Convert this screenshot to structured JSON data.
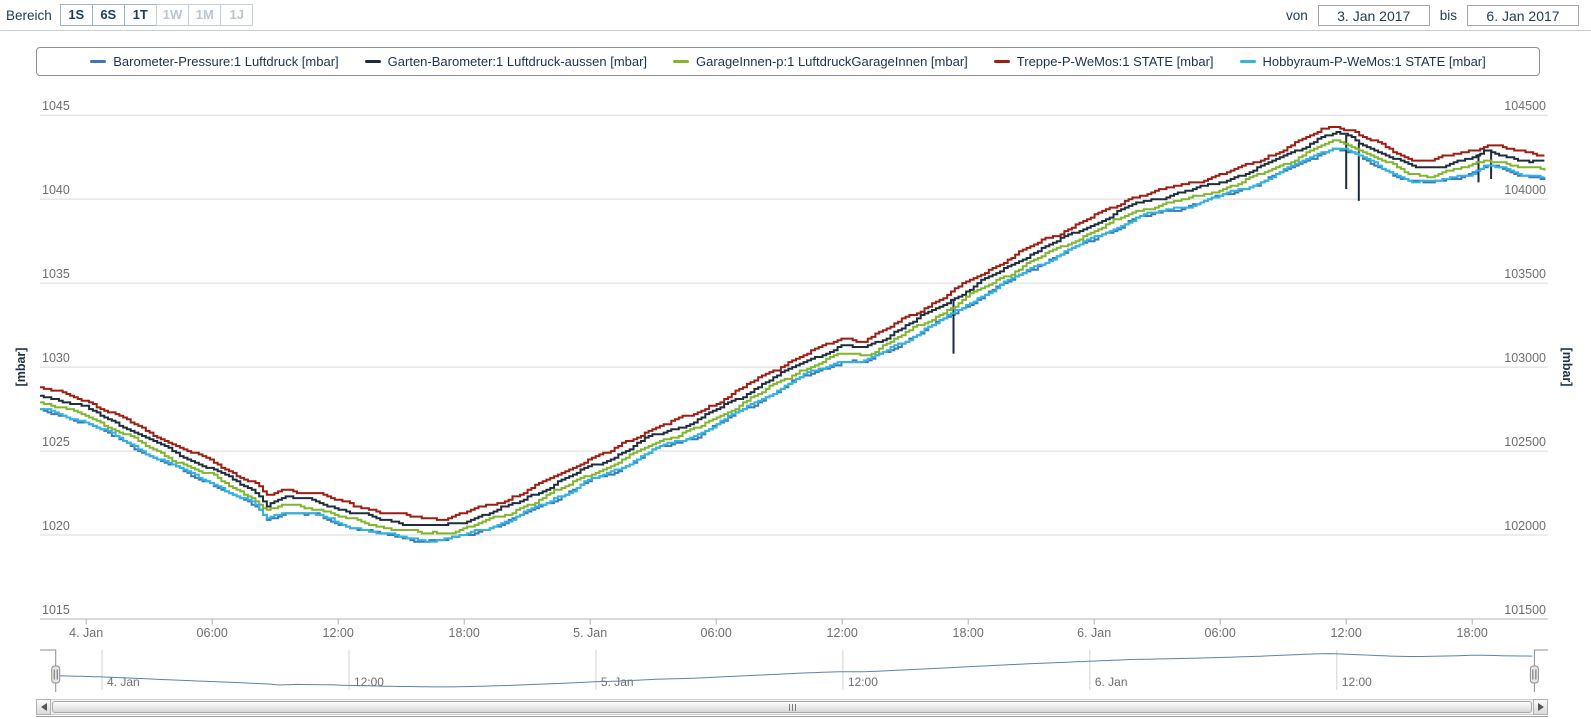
{
  "toolbar": {
    "range_label": "Bereich",
    "range_buttons": [
      {
        "label": "1S",
        "enabled": true
      },
      {
        "label": "6S",
        "enabled": true
      },
      {
        "label": "1T",
        "enabled": true
      },
      {
        "label": "1W",
        "enabled": false
      },
      {
        "label": "1M",
        "enabled": false
      },
      {
        "label": "1J",
        "enabled": false
      }
    ],
    "from_label": "von",
    "from_value": "3. Jan 2017",
    "to_label": "bis",
    "to_value": "6. Jan 2017"
  },
  "chart_data": {
    "type": "line",
    "title": "",
    "grid": "horizontal",
    "legend_position": "top",
    "x_axis": {
      "unit": "hours relative to 4. Jan 2017 00:00",
      "range": [
        -2.2,
        69.6
      ],
      "ticks": [
        {
          "t": 0,
          "label": "4. Jan"
        },
        {
          "t": 6,
          "label": "06:00"
        },
        {
          "t": 12,
          "label": "12:00"
        },
        {
          "t": 18,
          "label": "18:00"
        },
        {
          "t": 24,
          "label": "5. Jan"
        },
        {
          "t": 30,
          "label": "06:00"
        },
        {
          "t": 36,
          "label": "12:00"
        },
        {
          "t": 42,
          "label": "18:00"
        },
        {
          "t": 48,
          "label": "6. Jan"
        },
        {
          "t": 54,
          "label": "06:00"
        },
        {
          "t": 60,
          "label": "12:00"
        },
        {
          "t": 66,
          "label": "18:00"
        }
      ]
    },
    "y_axis_left": {
      "title": "[mbar]",
      "min": 1015,
      "max": 1045,
      "tick_interval": 5,
      "tick_labels": [
        "1015",
        "1020",
        "1025",
        "1030",
        "1035",
        "1040",
        "1045"
      ]
    },
    "y_axis_right": {
      "title": "[mbar]",
      "tick_labels": [
        "101500",
        "102000",
        "102500",
        "103000",
        "103500",
        "104000",
        "104500"
      ]
    },
    "base_curve_treppe": {
      "t_hours": [
        -2.2,
        -1,
        0,
        1,
        2,
        3,
        4,
        5,
        6,
        7,
        8,
        8.6,
        9.5,
        11,
        12,
        13,
        14,
        15,
        16,
        17,
        18,
        19,
        20,
        21,
        22,
        23,
        24,
        25,
        26,
        27,
        28,
        29,
        30,
        31,
        32,
        33,
        34,
        35,
        36,
        37,
        38,
        39,
        40,
        41,
        42,
        43,
        44,
        45,
        46,
        47,
        48,
        49,
        50,
        51,
        52,
        53,
        54,
        55,
        56,
        57,
        58,
        58.8,
        59.5,
        60.2,
        61,
        62,
        63,
        64,
        65,
        66,
        66.7,
        67.5,
        68.2,
        69,
        69.6
      ],
      "mbar": [
        1028.8,
        1028.4,
        1028.0,
        1027.4,
        1026.8,
        1026.1,
        1025.5,
        1024.9,
        1024.4,
        1023.7,
        1023.1,
        1022.3,
        1022.7,
        1022.5,
        1022.0,
        1021.7,
        1021.4,
        1021.2,
        1021.0,
        1021.0,
        1021.3,
        1021.7,
        1022.1,
        1022.7,
        1023.3,
        1023.9,
        1024.6,
        1025.0,
        1025.7,
        1026.4,
        1026.8,
        1027.2,
        1027.9,
        1028.6,
        1029.3,
        1030.0,
        1030.7,
        1031.2,
        1031.7,
        1031.6,
        1032.2,
        1032.9,
        1033.6,
        1034.3,
        1035.1,
        1035.8,
        1036.5,
        1037.2,
        1037.8,
        1038.4,
        1039.0,
        1039.6,
        1040.2,
        1040.5,
        1040.8,
        1041.1,
        1041.5,
        1041.9,
        1042.4,
        1043.0,
        1043.6,
        1044.1,
        1044.4,
        1044.1,
        1043.6,
        1043.0,
        1042.4,
        1042.3,
        1042.6,
        1042.9,
        1043.3,
        1043.1,
        1042.8,
        1042.7,
        1042.6
      ]
    },
    "series": [
      {
        "name": "Barometer-Pressure:1 Luftdruck [mbar]",
        "color": "#3d77bb",
        "offset_mbar": -1.35
      },
      {
        "name": "Garten-Barometer:1 Luftdruck-aussen [mbar]",
        "color": "#1b2d3e",
        "offset_mbar": -0.45,
        "spikes_down": [
          [
            41.3,
            1030.8
          ],
          [
            60.0,
            1040.6
          ],
          [
            60.6,
            1039.9
          ],
          [
            66.3,
            1041.0
          ],
          [
            66.9,
            1041.2
          ]
        ]
      },
      {
        "name": "GarageInnen-p:1 LuftdruckGarageInnen [mbar]",
        "color": "#82b52b",
        "offset_mbar": -0.9
      },
      {
        "name": "Treppe-P-WeMos:1 STATE [mbar]",
        "color": "#9d1d12",
        "offset_mbar": 0
      },
      {
        "name": "Hobbyraum-P-WeMos:1 STATE [mbar]",
        "color": "#33b3e0",
        "offset_mbar": -1.3
      }
    ],
    "navigator": {
      "line_color": "#5b84ad",
      "ticks": [
        {
          "t": 0,
          "label": "4. Jan"
        },
        {
          "t": 12,
          "label": "12:00"
        },
        {
          "t": 24,
          "label": "5. Jan"
        },
        {
          "t": 36,
          "label": "12:00"
        },
        {
          "t": 48,
          "label": "6. Jan"
        },
        {
          "t": 60,
          "label": "12:00"
        }
      ]
    }
  }
}
